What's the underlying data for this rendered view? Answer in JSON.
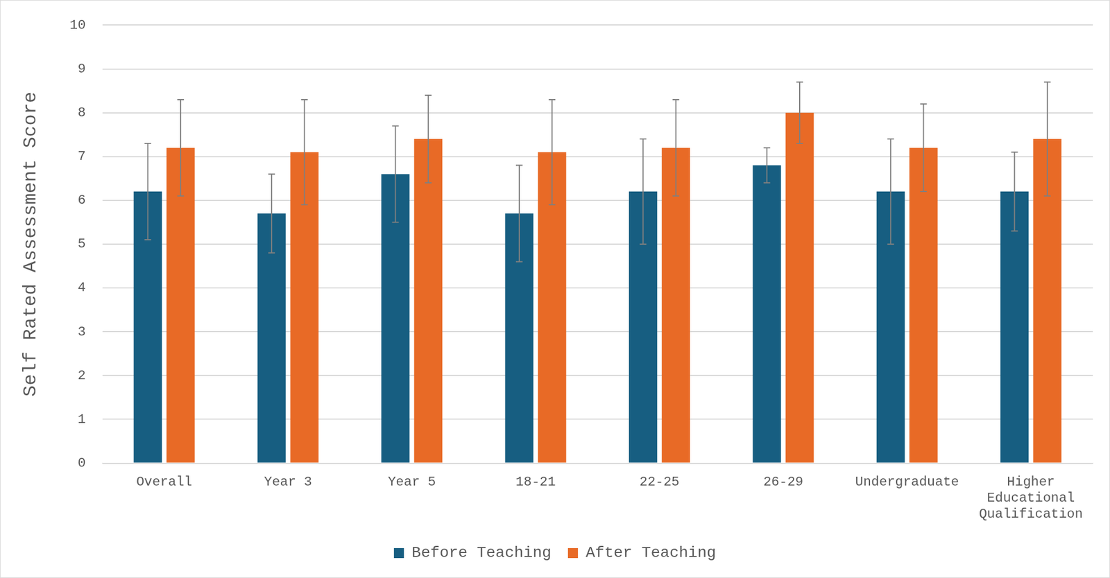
{
  "chart_data": {
    "type": "bar",
    "y_label": "Self Rated Assessment Score",
    "categories": [
      "Overall",
      "Year 3",
      "Year 5",
      "18-21",
      "22-25",
      "26-29",
      "Undergraduate",
      "Higher Educational Qualification"
    ],
    "series": [
      {
        "name": "Before Teaching",
        "color": "#175e81",
        "values": [
          6.2,
          5.7,
          6.6,
          5.7,
          6.2,
          6.8,
          6.2,
          6.2
        ],
        "errors": [
          1.1,
          0.9,
          1.1,
          1.1,
          1.2,
          0.4,
          1.2,
          0.9
        ]
      },
      {
        "name": "After Teaching",
        "color": "#e86a26",
        "values": [
          7.2,
          7.1,
          7.4,
          7.1,
          7.2,
          8.0,
          7.2,
          7.4
        ],
        "errors": [
          1.1,
          1.2,
          1.0,
          1.2,
          1.1,
          0.7,
          1.0,
          1.3
        ]
      }
    ],
    "ylim": [
      0,
      10
    ],
    "yticks": [
      0,
      1,
      2,
      3,
      4,
      5,
      6,
      7,
      8,
      9,
      10
    ],
    "grid": true,
    "legend": "bottom"
  }
}
